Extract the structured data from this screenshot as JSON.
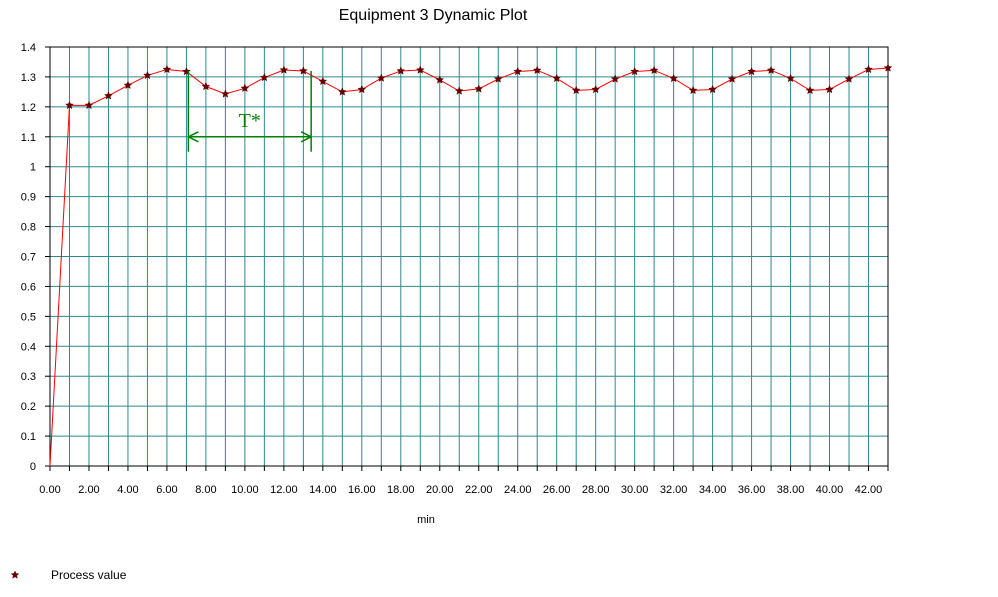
{
  "chart_data": {
    "type": "line",
    "title": "Equipment 3 Dynamic Plot",
    "xlabel": "min",
    "ylabel": "",
    "xlim": [
      0,
      43
    ],
    "ylim": [
      0,
      1.4
    ],
    "grid": true,
    "x_ticks": [
      "0.00",
      "2.00",
      "4.00",
      "6.00",
      "8.00",
      "10.00",
      "12.00",
      "14.00",
      "16.00",
      "18.00",
      "20.00",
      "22.00",
      "24.00",
      "26.00",
      "28.00",
      "30.00",
      "32.00",
      "34.00",
      "36.00",
      "38.00",
      "40.00",
      "42.00"
    ],
    "y_ticks": [
      "0",
      "0.1",
      "0.2",
      "0.3",
      "0.4",
      "0.5",
      "0.6",
      "0.7",
      "0.8",
      "0.9",
      "1",
      "1.1",
      "1.2",
      "1.3",
      "1.4"
    ],
    "legend_position": "bottom-left",
    "series": [
      {
        "name": "Process value",
        "line_color": "#ff0000",
        "marker_color": "#660000",
        "marker": "star",
        "x": [
          0,
          1,
          2,
          3,
          4,
          5,
          6,
          7,
          8,
          9,
          10,
          11,
          12,
          13,
          14,
          15,
          16,
          17,
          18,
          19,
          20,
          21,
          22,
          23,
          24,
          25,
          26,
          27,
          28,
          29,
          30,
          31,
          32,
          33,
          34,
          35,
          36,
          37,
          38,
          39,
          40,
          41,
          42,
          43
        ],
        "y": [
          0.0,
          1.205,
          1.205,
          1.237,
          1.272,
          1.305,
          1.325,
          1.318,
          1.268,
          1.243,
          1.262,
          1.298,
          1.323,
          1.32,
          1.285,
          1.25,
          1.258,
          1.296,
          1.32,
          1.323,
          1.29,
          1.253,
          1.26,
          1.293,
          1.318,
          1.322,
          1.295,
          1.255,
          1.258,
          1.293,
          1.318,
          1.322,
          1.295,
          1.255,
          1.258,
          1.293,
          1.318,
          1.322,
          1.295,
          1.255,
          1.258,
          1.293,
          1.325,
          1.33
        ]
      }
    ],
    "annotation": {
      "label": "T*",
      "color": "#008000",
      "x_start": 7.1,
      "x_end": 13.4,
      "y": 1.1,
      "y_low": 1.05,
      "y_high": 1.32
    }
  }
}
